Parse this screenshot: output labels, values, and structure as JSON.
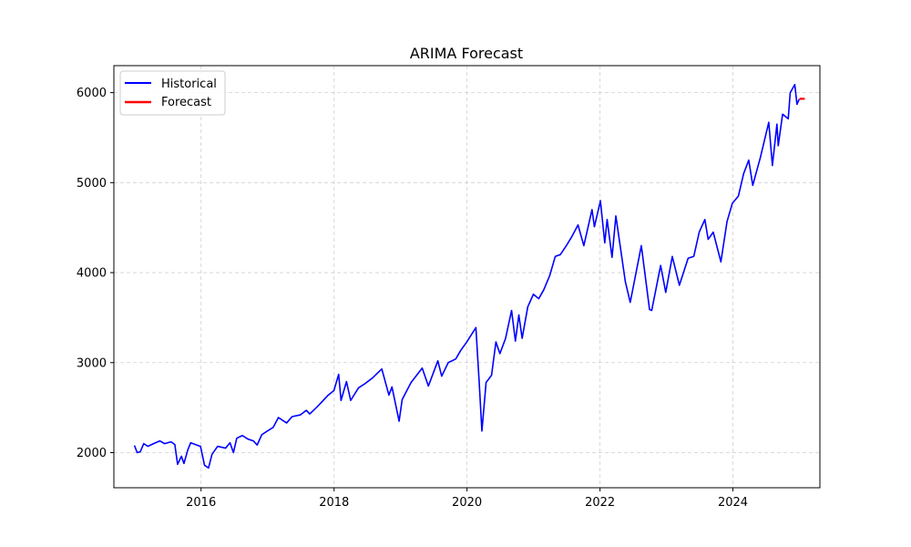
{
  "chart_data": {
    "type": "line",
    "title": "ARIMA Forecast",
    "xlabel": "",
    "ylabel": "",
    "x_axis": {
      "kind": "date",
      "range": [
        "2014-09-09",
        "2025-04-23"
      ],
      "ticks": [
        {
          "value": "2016-01-01",
          "label": "2016"
        },
        {
          "value": "2018-01-01",
          "label": "2018"
        },
        {
          "value": "2020-01-01",
          "label": "2020"
        },
        {
          "value": "2022-01-01",
          "label": "2022"
        },
        {
          "value": "2024-01-01",
          "label": "2024"
        }
      ]
    },
    "y_axis": {
      "range": [
        1610,
        6300
      ],
      "ticks": [
        {
          "value": 2000,
          "label": "2000"
        },
        {
          "value": 3000,
          "label": "3000"
        },
        {
          "value": 4000,
          "label": "4000"
        },
        {
          "value": 5000,
          "label": "5000"
        },
        {
          "value": 6000,
          "label": "6000"
        }
      ]
    },
    "grid": true,
    "legend_position": "top-left",
    "series": [
      {
        "name": "Historical",
        "color": "#0000ff",
        "points": [
          [
            "2014-12-31",
            2080
          ],
          [
            "2015-01-15",
            2000
          ],
          [
            "2015-02-01",
            2010
          ],
          [
            "2015-02-20",
            2100
          ],
          [
            "2015-03-15",
            2070
          ],
          [
            "2015-04-15",
            2100
          ],
          [
            "2015-05-20",
            2130
          ],
          [
            "2015-06-15",
            2100
          ],
          [
            "2015-07-20",
            2120
          ],
          [
            "2015-08-10",
            2090
          ],
          [
            "2015-08-25",
            1870
          ],
          [
            "2015-09-15",
            1960
          ],
          [
            "2015-09-29",
            1880
          ],
          [
            "2015-10-20",
            2030
          ],
          [
            "2015-11-05",
            2110
          ],
          [
            "2015-12-01",
            2090
          ],
          [
            "2015-12-29",
            2070
          ],
          [
            "2016-01-20",
            1860
          ],
          [
            "2016-02-11",
            1830
          ],
          [
            "2016-03-01",
            1980
          ],
          [
            "2016-04-01",
            2070
          ],
          [
            "2016-05-15",
            2050
          ],
          [
            "2016-06-08",
            2110
          ],
          [
            "2016-06-27",
            2000
          ],
          [
            "2016-07-15",
            2160
          ],
          [
            "2016-08-15",
            2190
          ],
          [
            "2016-09-15",
            2150
          ],
          [
            "2016-10-15",
            2130
          ],
          [
            "2016-11-04",
            2085
          ],
          [
            "2016-11-30",
            2200
          ],
          [
            "2016-12-30",
            2240
          ],
          [
            "2017-01-31",
            2280
          ],
          [
            "2017-03-01",
            2390
          ],
          [
            "2017-04-15",
            2330
          ],
          [
            "2017-05-15",
            2400
          ],
          [
            "2017-06-30",
            2420
          ],
          [
            "2017-08-01",
            2470
          ],
          [
            "2017-08-20",
            2430
          ],
          [
            "2017-09-30",
            2510
          ],
          [
            "2017-10-31",
            2575
          ],
          [
            "2017-11-30",
            2640
          ],
          [
            "2017-12-31",
            2690
          ],
          [
            "2018-01-26",
            2870
          ],
          [
            "2018-02-08",
            2580
          ],
          [
            "2018-03-10",
            2790
          ],
          [
            "2018-04-02",
            2580
          ],
          [
            "2018-05-15",
            2720
          ],
          [
            "2018-06-15",
            2760
          ],
          [
            "2018-07-31",
            2830
          ],
          [
            "2018-09-20",
            2930
          ],
          [
            "2018-10-29",
            2640
          ],
          [
            "2018-11-15",
            2730
          ],
          [
            "2018-12-24",
            2350
          ],
          [
            "2019-01-10",
            2590
          ],
          [
            "2019-02-28",
            2780
          ],
          [
            "2019-04-30",
            2940
          ],
          [
            "2019-06-03",
            2740
          ],
          [
            "2019-07-25",
            3020
          ],
          [
            "2019-08-15",
            2850
          ],
          [
            "2019-09-20",
            3000
          ],
          [
            "2019-10-31",
            3040
          ],
          [
            "2019-11-29",
            3140
          ],
          [
            "2019-12-31",
            3230
          ],
          [
            "2020-02-19",
            3390
          ],
          [
            "2020-03-09",
            2750
          ],
          [
            "2020-03-23",
            2240
          ],
          [
            "2020-04-15",
            2780
          ],
          [
            "2020-05-15",
            2860
          ],
          [
            "2020-06-08",
            3230
          ],
          [
            "2020-06-30",
            3100
          ],
          [
            "2020-07-31",
            3270
          ],
          [
            "2020-09-02",
            3580
          ],
          [
            "2020-09-23",
            3240
          ],
          [
            "2020-10-12",
            3530
          ],
          [
            "2020-10-30",
            3270
          ],
          [
            "2020-11-30",
            3620
          ],
          [
            "2020-12-31",
            3760
          ],
          [
            "2021-01-29",
            3710
          ],
          [
            "2021-02-26",
            3810
          ],
          [
            "2021-03-31",
            3970
          ],
          [
            "2021-04-30",
            4180
          ],
          [
            "2021-05-28",
            4200
          ],
          [
            "2021-06-30",
            4300
          ],
          [
            "2021-07-30",
            4400
          ],
          [
            "2021-09-02",
            4530
          ],
          [
            "2021-10-04",
            4300
          ],
          [
            "2021-11-18",
            4700
          ],
          [
            "2021-12-01",
            4510
          ],
          [
            "2021-12-31",
            4770
          ],
          [
            "2022-01-03",
            4800
          ],
          [
            "2022-01-27",
            4330
          ],
          [
            "2022-02-09",
            4590
          ],
          [
            "2022-03-08",
            4170
          ],
          [
            "2022-03-29",
            4630
          ],
          [
            "2022-05-20",
            3900
          ],
          [
            "2022-06-16",
            3670
          ],
          [
            "2022-08-16",
            4300
          ],
          [
            "2022-09-30",
            3590
          ],
          [
            "2022-10-12",
            3580
          ],
          [
            "2022-11-30",
            4080
          ],
          [
            "2022-12-28",
            3780
          ],
          [
            "2023-02-02",
            4180
          ],
          [
            "2023-03-13",
            3860
          ],
          [
            "2023-04-30",
            4160
          ],
          [
            "2023-05-31",
            4180
          ],
          [
            "2023-06-30",
            4450
          ],
          [
            "2023-07-31",
            4590
          ],
          [
            "2023-08-18",
            4370
          ],
          [
            "2023-09-15",
            4450
          ],
          [
            "2023-10-27",
            4120
          ],
          [
            "2023-11-30",
            4570
          ],
          [
            "2023-12-29",
            4770
          ],
          [
            "2024-01-31",
            4850
          ],
          [
            "2024-02-29",
            5100
          ],
          [
            "2024-03-28",
            5250
          ],
          [
            "2024-04-19",
            4970
          ],
          [
            "2024-05-31",
            5280
          ],
          [
            "2024-07-16",
            5670
          ],
          [
            "2024-08-05",
            5190
          ],
          [
            "2024-08-30",
            5650
          ],
          [
            "2024-09-06",
            5410
          ],
          [
            "2024-09-30",
            5760
          ],
          [
            "2024-10-31",
            5710
          ],
          [
            "2024-11-11",
            6000
          ],
          [
            "2024-12-06",
            6090
          ],
          [
            "2024-12-18",
            5870
          ],
          [
            "2024-12-31",
            5930
          ]
        ]
      },
      {
        "name": "Forecast",
        "color": "#ff0000",
        "points": [
          [
            "2025-01-01",
            5935
          ],
          [
            "2025-01-08",
            5930
          ],
          [
            "2025-01-15",
            5933
          ],
          [
            "2025-01-22",
            5931
          ],
          [
            "2025-01-30",
            5932
          ]
        ]
      }
    ]
  }
}
